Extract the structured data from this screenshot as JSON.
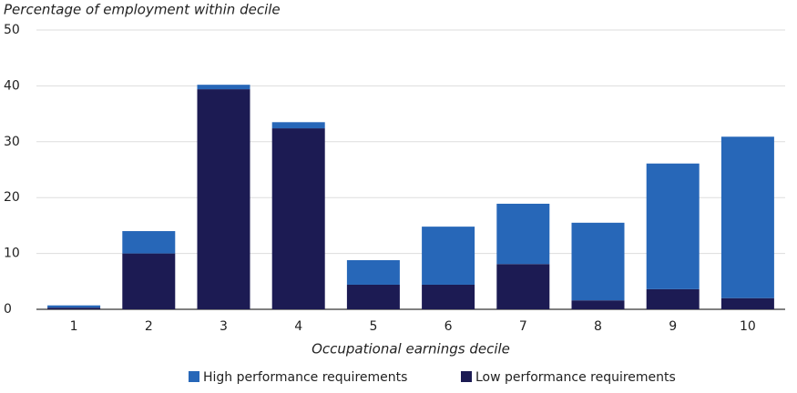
{
  "chart_data": {
    "type": "stacked_bar",
    "title": "Percentage of employment within decile",
    "x_label": "Occupational earnings decile",
    "categories": [
      "1",
      "2",
      "3",
      "4",
      "5",
      "6",
      "7",
      "8",
      "9",
      "10"
    ],
    "series": [
      {
        "name": "High performance requirements",
        "color": "#2767b8",
        "values": [
          0.4,
          4,
          0.8,
          1.1,
          4.4,
          10.4,
          10.8,
          13.9,
          22.5,
          28.9
        ]
      },
      {
        "name": "Low performance requirements",
        "color": "#1c1b53",
        "values": [
          0.3,
          10,
          39.4,
          32.4,
          4.4,
          4.4,
          8.1,
          1.6,
          3.6,
          2.0
        ]
      }
    ],
    "ylim": [
      0,
      50
    ],
    "yticks": [
      0,
      10,
      20,
      30,
      40,
      50
    ],
    "grid": true,
    "legend": "bottom"
  }
}
